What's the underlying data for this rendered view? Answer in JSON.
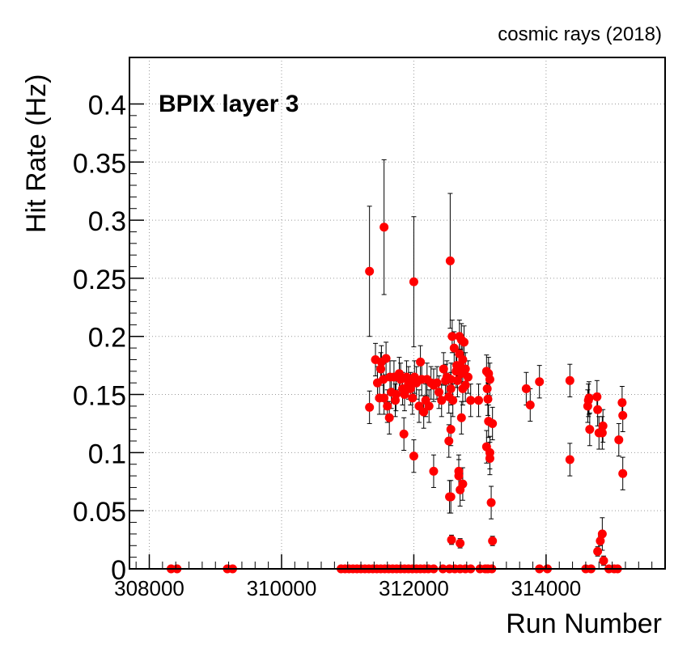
{
  "chart_data": {
    "type": "scatter",
    "title": "cosmic rays (2018)",
    "annotation": "BPIX layer 3",
    "xlabel": "Run Number",
    "ylabel": "Hit Rate (Hz)",
    "xlim": [
      307700,
      315800
    ],
    "ylim": [
      0,
      0.44
    ],
    "xticks": [
      308000,
      310000,
      312000,
      314000
    ],
    "xtick_labels": [
      "308000",
      "310000",
      "312000",
      "314000"
    ],
    "yticks": [
      0,
      0.05,
      0.1,
      0.15,
      0.2,
      0.25,
      0.3,
      0.35,
      0.4
    ],
    "ytick_labels": [
      "0",
      "0.05",
      "0.1",
      "0.15",
      "0.2",
      "0.25",
      "0.3",
      "0.35",
      "0.4"
    ],
    "grid": true,
    "marker_color": "#ff0000",
    "errorbar_color": "#000000",
    "series": [
      {
        "x": [
          308330,
          308420,
          309180,
          309260,
          310900,
          310960,
          311020,
          311080,
          311140,
          311200,
          311260,
          311320,
          311380,
          311440,
          311500,
          311560,
          311620,
          311680,
          311740,
          311800,
          311860,
          311920,
          311980,
          312040,
          312100,
          312160,
          312220,
          312300,
          312440,
          312540,
          312620,
          312700,
          312780,
          312860,
          313000,
          313080,
          313120,
          313180,
          313900,
          314600,
          314680,
          314950,
          315030,
          315080,
          311330,
          311420,
          311450,
          311480,
          311500,
          311510,
          311540,
          311550,
          311580,
          311600,
          311630,
          311640,
          311660,
          311700,
          311720,
          311730,
          311780,
          311800,
          311830,
          311860,
          311890,
          311920,
          311950,
          311980,
          312010,
          312040,
          312080,
          312100,
          312120,
          312150,
          312180,
          312200,
          312230,
          312260,
          312300,
          312350,
          312380,
          312420,
          312450,
          312480,
          312500,
          312530,
          312560,
          312580,
          312610,
          312640,
          312660,
          312690,
          312700,
          312720,
          312740,
          312760,
          312780,
          312820,
          312860,
          312000,
          312550,
          311330,
          311550,
          312560,
          312650,
          312690,
          312720,
          312740,
          312780,
          312560,
          312530,
          312720,
          311850,
          312000,
          312300,
          312560,
          312570,
          312680,
          312700,
          313100,
          313130,
          313150,
          313110,
          313120,
          313130,
          313190,
          313100,
          313150,
          313170,
          313190,
          313700,
          313760,
          313900,
          314360,
          314360,
          314630,
          314640,
          314650,
          314660,
          314770,
          314780,
          314800,
          314850,
          314860,
          315100,
          315150,
          315160,
          315160,
          314780,
          314820,
          314850,
          314870,
          314020,
          312540,
          312700,
          313150,
          312590,
          312680,
          312740,
          312980
        ],
        "y": [
          0,
          0,
          0,
          0,
          0,
          0,
          0,
          0,
          0,
          0,
          0,
          0,
          0,
          0,
          0,
          0,
          0,
          0,
          0,
          0,
          0,
          0,
          0,
          0,
          0,
          0,
          0,
          0,
          0,
          0,
          0,
          0,
          0,
          0,
          0,
          0,
          0,
          0,
          0,
          0,
          0,
          0,
          0,
          0,
          0.139,
          0.18,
          0.16,
          0.147,
          0.172,
          0.178,
          0.163,
          0.147,
          0.181,
          0.14,
          0.13,
          0.165,
          0.152,
          0.165,
          0.145,
          0.15,
          0.168,
          0.163,
          0.155,
          0.15,
          0.165,
          0.16,
          0.155,
          0.147,
          0.165,
          0.16,
          0.14,
          0.178,
          0.163,
          0.135,
          0.145,
          0.163,
          0.14,
          0.16,
          0.158,
          0.16,
          0.152,
          0.145,
          0.172,
          0.162,
          0.165,
          0.148,
          0.163,
          0.2,
          0.19,
          0.17,
          0.162,
          0.185,
          0.175,
          0.168,
          0.155,
          0.195,
          0.158,
          0.165,
          0.145,
          0.247,
          0.265,
          0.256,
          0.294,
          0.155,
          0.175,
          0.2,
          0.197,
          0.18,
          0.172,
          0.12,
          0.11,
          0.13,
          0.116,
          0.097,
          0.084,
          0.062,
          0.025,
          0.084,
          0.068,
          0.17,
          0.168,
          0.163,
          0.155,
          0.146,
          0.127,
          0.125,
          0.105,
          0.1,
          0.057,
          0.024,
          0.155,
          0.141,
          0.161,
          0.162,
          0.094,
          0.14,
          0.145,
          0.147,
          0.12,
          0.148,
          0.137,
          0.117,
          0.117,
          0.123,
          0.111,
          0.143,
          0.132,
          0.082,
          0.015,
          0.024,
          0.03,
          0.007,
          0,
          0.062,
          0.022,
          0.095,
          0.145,
          0.08,
          0.073,
          0.145
        ]
      }
    ]
  }
}
